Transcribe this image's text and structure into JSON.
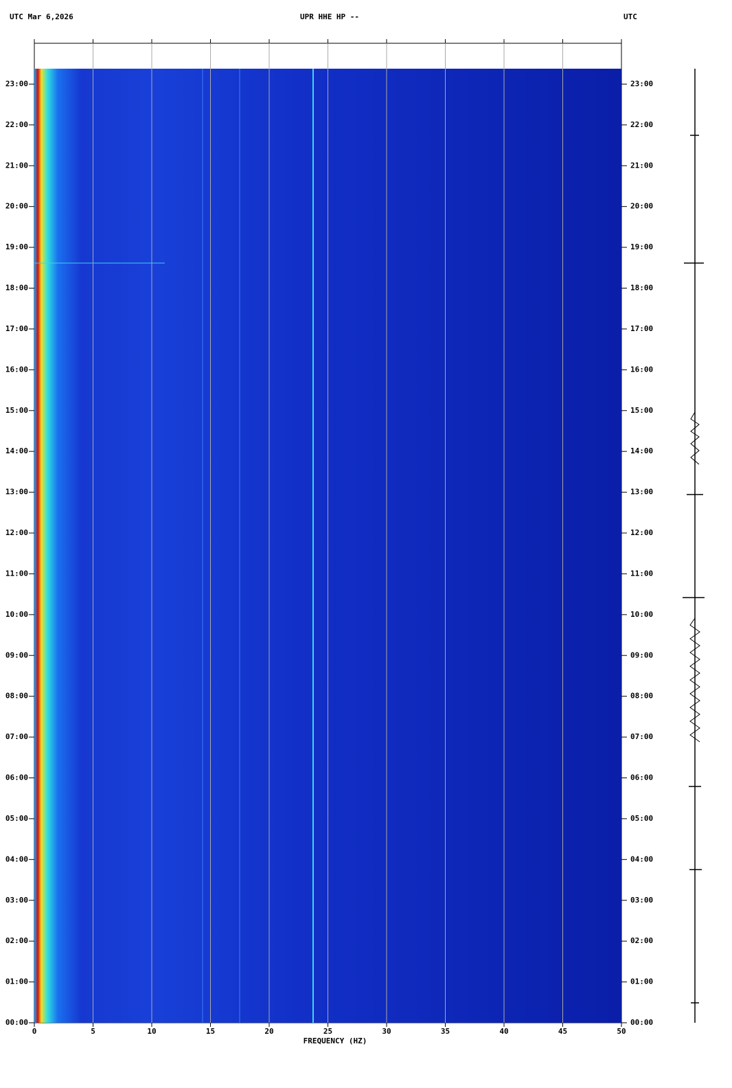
{
  "chart_data": {
    "type": "spectrogram",
    "header_left": "UTC  Mar 6,2026",
    "title": "UPR HHE HP --",
    "header_right": "UTC",
    "x_label": "FREQUENCY (HZ)",
    "xlim": [
      0,
      50
    ],
    "xticks": [
      0,
      5,
      10,
      15,
      20,
      25,
      30,
      35,
      40,
      45,
      50
    ],
    "ylim": [
      0,
      24
    ],
    "yticks": [
      {
        "value": 0,
        "label": "00:00"
      },
      {
        "value": 1,
        "label": "01:00"
      },
      {
        "value": 2,
        "label": "02:00"
      },
      {
        "value": 3,
        "label": "03:00"
      },
      {
        "value": 4,
        "label": "04:00"
      },
      {
        "value": 5,
        "label": "05:00"
      },
      {
        "value": 6,
        "label": "06:00"
      },
      {
        "value": 7,
        "label": "07:00"
      },
      {
        "value": 8,
        "label": "08:00"
      },
      {
        "value": 9,
        "label": "09:00"
      },
      {
        "value": 10,
        "label": "10:00"
      },
      {
        "value": 11,
        "label": "11:00"
      },
      {
        "value": 12,
        "label": "12:00"
      },
      {
        "value": 13,
        "label": "13:00"
      },
      {
        "value": 14,
        "label": "14:00"
      },
      {
        "value": 15,
        "label": "15:00"
      },
      {
        "value": 16,
        "label": "16:00"
      },
      {
        "value": 17,
        "label": "17:00"
      },
      {
        "value": 18,
        "label": "18:00"
      },
      {
        "value": 19,
        "label": "19:00"
      },
      {
        "value": 20,
        "label": "20:00"
      },
      {
        "value": 21,
        "label": "21:00"
      },
      {
        "value": 22,
        "label": "22:00"
      },
      {
        "value": 23,
        "label": "23:00"
      }
    ],
    "grid": true
  }
}
